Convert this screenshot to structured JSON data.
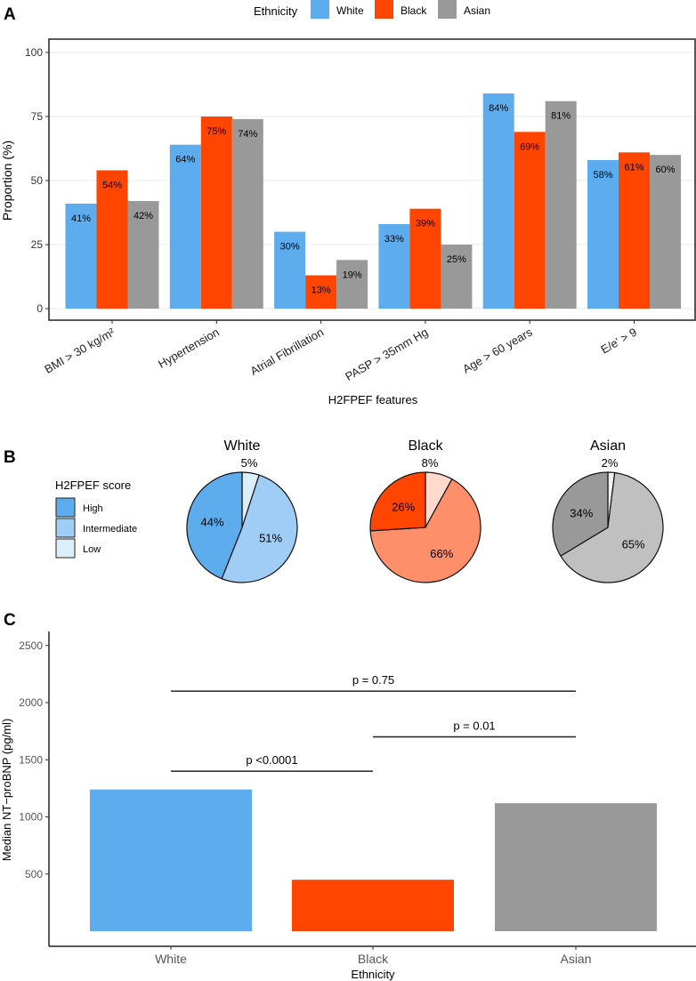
{
  "chart_data": [
    {
      "panel": "A",
      "type": "bar",
      "title": "",
      "xlabel": "H2FPEF features",
      "ylabel": "Proportion (%)",
      "ylim": [
        0,
        100
      ],
      "yticks": [
        "0",
        "25",
        "50",
        "75",
        "100"
      ],
      "grid": true,
      "legend": {
        "title": "Ethnicity",
        "placement": "top"
      },
      "categories": [
        "BMI > 30 kg/m²",
        "Hypertension",
        "Atrial Fibrillation",
        "PASP > 35mm Hg",
        "Age > 60 years",
        "E/e' > 9"
      ],
      "series": [
        {
          "name": "White",
          "color": "#5DADEE",
          "values": [
            41,
            64,
            30,
            33,
            84,
            58
          ],
          "labels": [
            "41%",
            "64%",
            "30%",
            "33%",
            "84%",
            "58%"
          ]
        },
        {
          "name": "Black",
          "color": "#FF4500",
          "values": [
            54,
            75,
            13,
            39,
            69,
            61
          ],
          "labels": [
            "54%",
            "75%",
            "13%",
            "39%",
            "69%",
            "61%"
          ]
        },
        {
          "name": "Asian",
          "color": "#999999",
          "values": [
            42,
            74,
            19,
            25,
            81,
            60
          ],
          "labels": [
            "42%",
            "74%",
            "19%",
            "25%",
            "81%",
            "60%"
          ]
        }
      ]
    },
    {
      "panel": "B",
      "type": "pie",
      "legend": {
        "title": "H2FPEF score",
        "entries": [
          "High",
          "Intermediate",
          "Low"
        ],
        "colors": [
          "#5DADEE",
          "#A0CDF5",
          "#DDEEFB"
        ],
        "placement": "left"
      },
      "pies": [
        {
          "title": "White",
          "slices": [
            {
              "name": "Low",
              "value": 5,
              "label": "5%",
              "color": "#DDEEFB"
            },
            {
              "name": "Intermediate",
              "value": 51,
              "label": "51%",
              "color": "#A0CDF5"
            },
            {
              "name": "High",
              "value": 44,
              "label": "44%",
              "color": "#5DADEE"
            }
          ]
        },
        {
          "title": "Black",
          "slices": [
            {
              "name": "Low",
              "value": 8,
              "label": "8%",
              "color": "#FFD9CC"
            },
            {
              "name": "Intermediate",
              "value": 66,
              "label": "66%",
              "color": "#FF8F6A"
            },
            {
              "name": "High",
              "value": 26,
              "label": "26%",
              "color": "#FF4500"
            }
          ]
        },
        {
          "title": "Asian",
          "slices": [
            {
              "name": "Low",
              "value": 2,
              "label": "2%",
              "color": "#F2F2F2"
            },
            {
              "name": "Intermediate",
              "value": 65,
              "label": "65%",
              "color": "#C0C0C0"
            },
            {
              "name": "High",
              "value": 34,
              "label": "34%",
              "color": "#999999"
            }
          ]
        }
      ]
    },
    {
      "panel": "C",
      "type": "bar",
      "xlabel": "Ethnicity",
      "ylabel": "Median NT−proBNP (pg/ml)",
      "ylim": [
        0,
        2600
      ],
      "yticks": [
        "500",
        "1000",
        "1500",
        "2000",
        "2500"
      ],
      "grid": false,
      "categories": [
        "White",
        "Black",
        "Asian"
      ],
      "values": [
        1240,
        450,
        1120
      ],
      "colors": [
        "#5DADEE",
        "#FF4500",
        "#999999"
      ],
      "comparisons": [
        {
          "from": "White",
          "to": "Black",
          "y": 1400,
          "label": "p <0.0001"
        },
        {
          "from": "Black",
          "to": "Asian",
          "y": 1700,
          "label": "p = 0.01"
        },
        {
          "from": "White",
          "to": "Asian",
          "y": 2100,
          "label": "p = 0.75"
        }
      ]
    }
  ],
  "panel_labels": [
    "A",
    "B",
    "C"
  ]
}
